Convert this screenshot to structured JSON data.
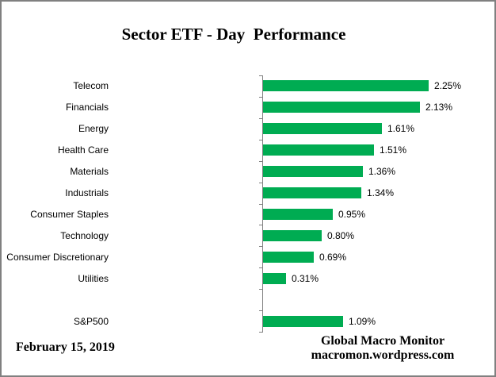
{
  "window": {
    "frame_color": "#808080",
    "background_color": "#ffffff"
  },
  "chart_data": {
    "type": "bar",
    "orientation": "horizontal",
    "title": "Sector ETF - Day  Performance",
    "categories": [
      "Telecom",
      "Financials",
      "Energy",
      "Health Care",
      "Materials",
      "Industrials",
      "Consumer Staples",
      "Technology",
      "Consumer Discretionary",
      "Utilities",
      "",
      "S&P500"
    ],
    "values": [
      2.25,
      2.13,
      1.61,
      1.51,
      1.36,
      1.34,
      0.95,
      0.8,
      0.69,
      0.31,
      null,
      1.09
    ],
    "value_labels": [
      "2.25%",
      "2.13%",
      "1.61%",
      "1.51%",
      "1.36%",
      "1.34%",
      "0.95%",
      "0.80%",
      "0.69%",
      "0.31%",
      "",
      "1.09%"
    ],
    "xlabel": "",
    "ylabel": "",
    "xlim": [
      0,
      3.15
    ],
    "x_axis_visible": false,
    "grid": false,
    "legend": false,
    "bar_color": "#00AC52",
    "axis_color": "#808080",
    "label_color": "#000000"
  },
  "footer": {
    "date": "February 15, 2019",
    "attribution_line1": "Global Macro Monitor",
    "attribution_line2": "macromon.wordpress.com"
  }
}
